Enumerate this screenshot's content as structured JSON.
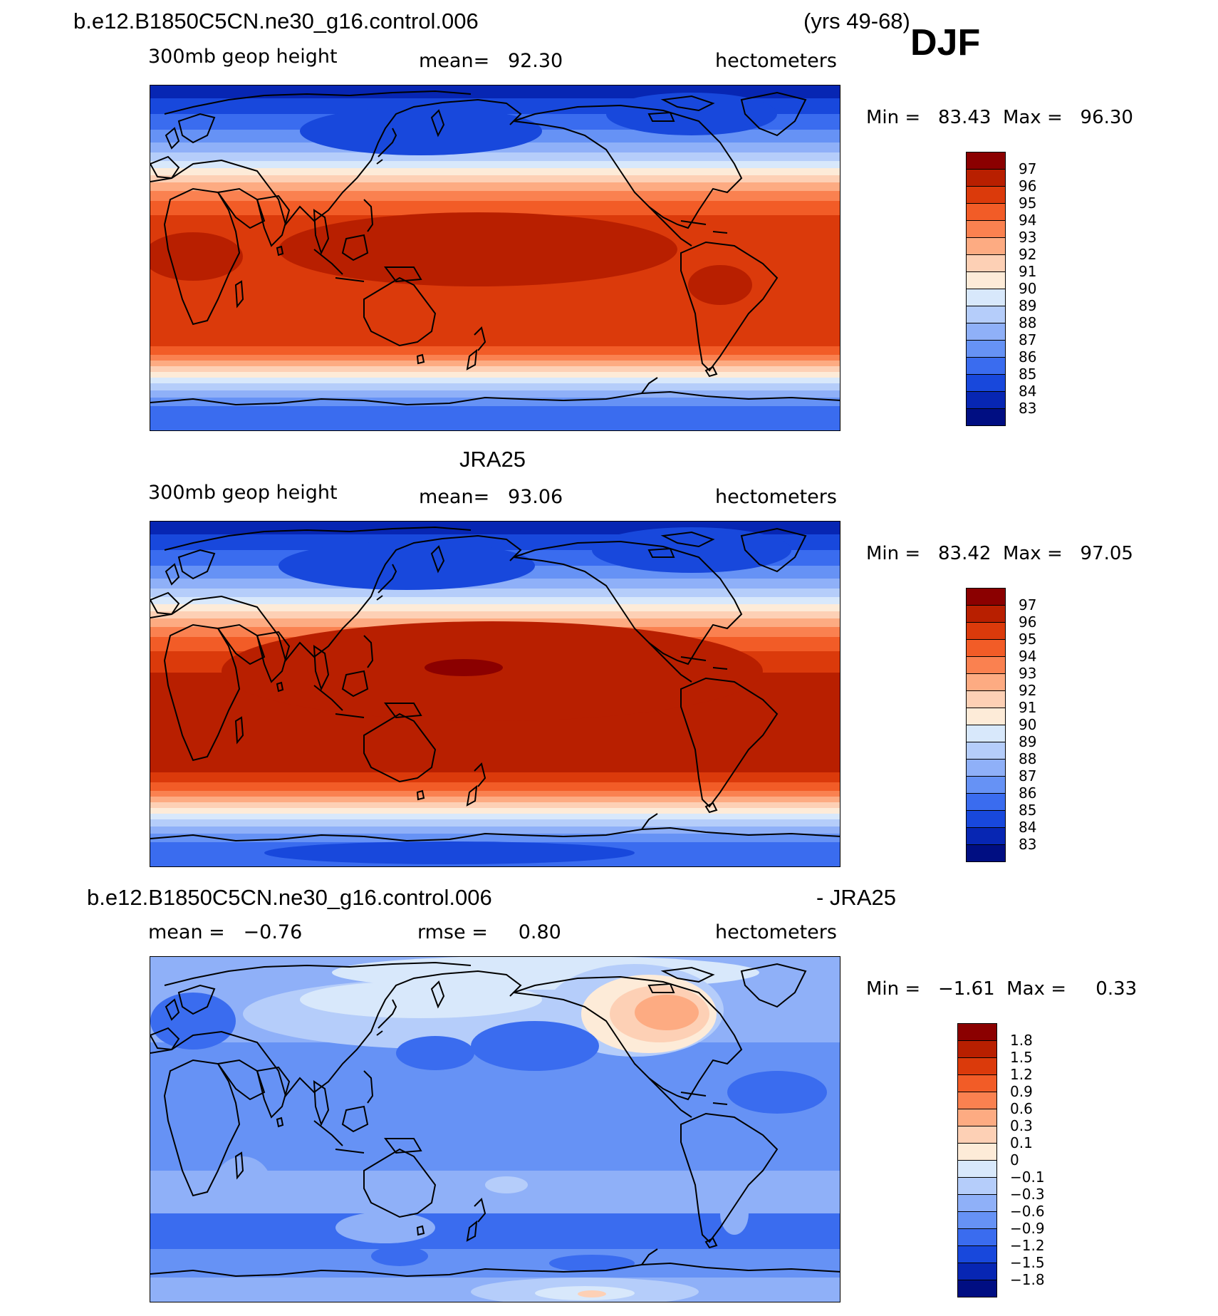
{
  "header": {
    "case_name": "b.e12.B1850C5CN.ne30_g16.control.006",
    "years": "(yrs 49-68)",
    "season": "DJF"
  },
  "panels": [
    {
      "id": "model",
      "title": "",
      "variable": "300mb geop height",
      "stat": "mean=   92.30",
      "units": "hectometers",
      "minmax": "Min =   83.43  Max =   96.30",
      "colorbar_labels": [
        "97",
        "96",
        "95",
        "94",
        "93",
        "92",
        "91",
        "90",
        "89",
        "88",
        "87",
        "86",
        "85",
        "84",
        "83"
      ]
    },
    {
      "id": "obs",
      "title": "JRA25",
      "variable": "300mb geop height",
      "stat": "mean=   93.06",
      "units": "hectometers",
      "minmax": "Min =   83.42  Max =   97.05",
      "colorbar_labels": [
        "97",
        "96",
        "95",
        "94",
        "93",
        "92",
        "91",
        "90",
        "89",
        "88",
        "87",
        "86",
        "85",
        "84",
        "83"
      ]
    },
    {
      "id": "diff",
      "title_left": "b.e12.B1850C5CN.ne30_g16.control.006",
      "title_right": "- JRA25",
      "stat_left": "mean =   −0.76",
      "stat_mid": "rmse =     0.80",
      "units": "hectometers",
      "minmax": "Min =   −1.61  Max =     0.33",
      "colorbar_labels": [
        "1.8",
        "1.5",
        "1.2",
        "0.9",
        "0.6",
        "0.3",
        "0.1",
        "0",
        "−0.1",
        "−0.3",
        "−0.6",
        "−0.9",
        "−1.2",
        "−1.5",
        "−1.8"
      ]
    }
  ],
  "colors": {
    "abs_scale": [
      "#8b0000",
      "#b81f00",
      "#db3a0b",
      "#f25c27",
      "#fa8150",
      "#fdab82",
      "#fdd0b5",
      "#fdebd8",
      "#d8e8fb",
      "#b5cdfa",
      "#8fb0f8",
      "#6692f5",
      "#3a6cef",
      "#1848dc",
      "#0726b3",
      "#000e82"
    ],
    "diff_scale": [
      "#8b0000",
      "#b81f00",
      "#db3a0b",
      "#f25c27",
      "#fa8150",
      "#fdab82",
      "#fdd0b5",
      "#fdebd8",
      "#d8e8fb",
      "#b5cdfa",
      "#8fb0f8",
      "#6692f5",
      "#3a6cef",
      "#1848dc",
      "#0726b3",
      "#000e82"
    ]
  }
}
